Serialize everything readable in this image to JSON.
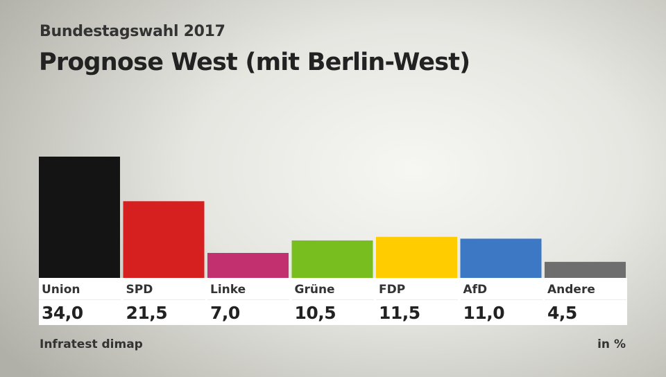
{
  "header": {
    "supertitle": "Bundestagswahl 2017",
    "title": "Prognose West (mit Berlin-West)"
  },
  "footer": {
    "source": "Infratest dimap",
    "unit": "in %"
  },
  "chart_data": {
    "type": "bar",
    "title": "Prognose West (mit Berlin-West)",
    "subtitle": "Bundestagswahl 2017",
    "categories": [
      "Union",
      "SPD",
      "Linke",
      "Grüne",
      "FDP",
      "AfD",
      "Andere"
    ],
    "values": [
      34.0,
      21.5,
      7.0,
      10.5,
      11.5,
      11.0,
      4.5
    ],
    "value_labels": [
      "34,0",
      "21,5",
      "7,0",
      "10,5",
      "11,5",
      "11,0",
      "4,5"
    ],
    "colors": [
      "#141414",
      "#d6201f",
      "#c2306f",
      "#78be1e",
      "#ffcc00",
      "#3d78c4",
      "#6e6e6e"
    ],
    "ylabel": "",
    "unit": "in %",
    "ylim": [
      0,
      34.0
    ],
    "grid": false,
    "legend": "none"
  }
}
